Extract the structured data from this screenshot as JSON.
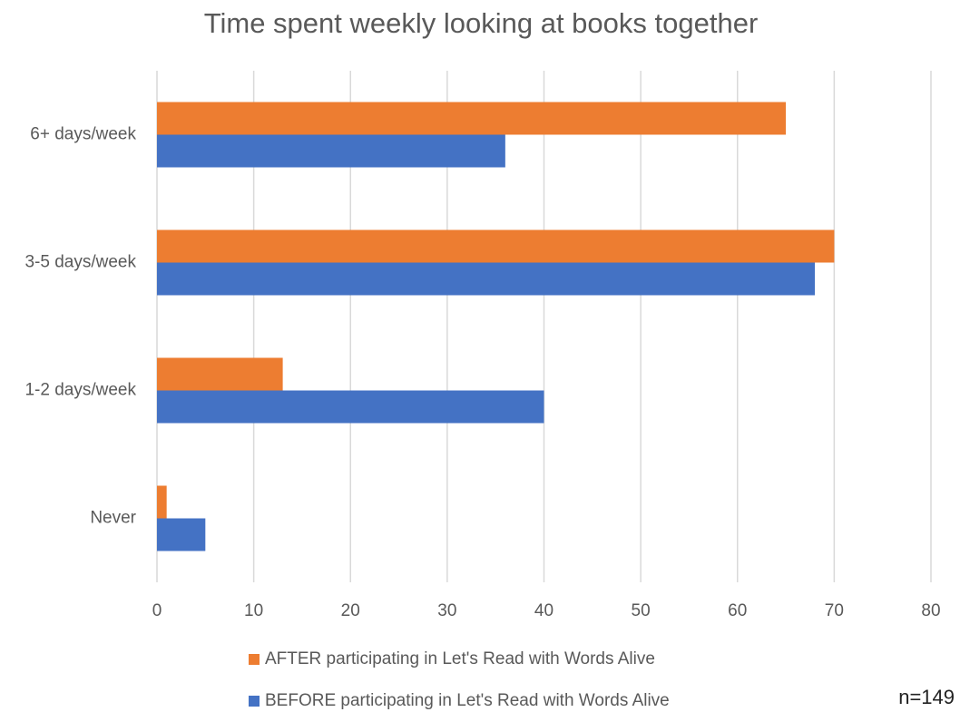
{
  "chart_data": {
    "type": "barh",
    "title": "Time spent weekly looking at books together",
    "categories": [
      "6+ days/week",
      "3-5 days/week",
      "1-2 days/week",
      "Never"
    ],
    "series": [
      {
        "name": "AFTER participating in Let's Read with Words Alive",
        "color": "#ed7d31",
        "values": [
          65,
          70,
          13,
          1
        ]
      },
      {
        "name": "BEFORE participating in Let's Read with Words Alive",
        "color": "#4472c4",
        "values": [
          36,
          68,
          40,
          5
        ]
      }
    ],
    "xlim": [
      0,
      80
    ],
    "xticks": [
      0,
      10,
      20,
      30,
      40,
      50,
      60,
      70,
      80
    ],
    "grid": true,
    "annotation": "n=149"
  }
}
